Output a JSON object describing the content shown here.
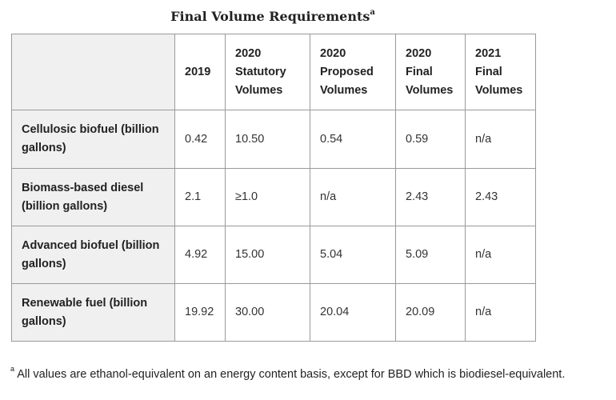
{
  "title": {
    "text": "Final Volume Requirements",
    "marker": "a"
  },
  "table": {
    "headers": [
      "",
      "2019",
      "2020\nStatutory\nVolumes",
      "2020\nProposed\nVolumes",
      "2020\nFinal\nVolumes",
      "2021\nFinal\nVolumes"
    ],
    "rows": [
      {
        "label": "Cellulosic biofuel (billion gallons)",
        "values": [
          "0.42",
          "10.50",
          "0.54",
          "0.59",
          "n/a"
        ]
      },
      {
        "label": "Biomass-based diesel (billion gallons)",
        "values": [
          "2.1",
          "≥1.0",
          "n/a",
          "2.43",
          "2.43"
        ]
      },
      {
        "label": "Advanced biofuel (billion gallons)",
        "values": [
          "4.92",
          "15.00",
          "5.04",
          "5.09",
          "n/a"
        ]
      },
      {
        "label": "Renewable fuel (billion gallons)",
        "values": [
          "19.92",
          "30.00",
          "20.04",
          "20.09",
          "n/a"
        ]
      }
    ]
  },
  "footnote": {
    "marker": "a",
    "text": " All values are ethanol-equivalent on an energy content basis, except for BBD which is biodiesel-equivalent."
  }
}
